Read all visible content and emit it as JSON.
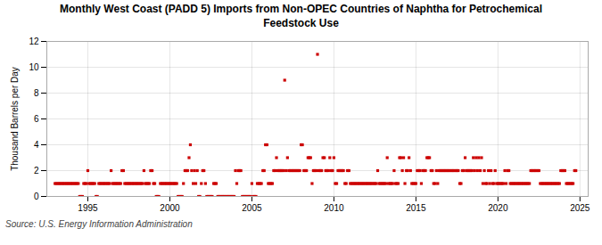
{
  "chart_data": {
    "type": "scatter",
    "title": "Monthly West Coast (PADD 5) Imports from Non-OPEC Countries of Naphtha for Petrochemical\nFeedstock Use",
    "ylabel": "Thousand Barrels per Day",
    "annotations": [
      "Source: U.S. Energy Information Administration"
    ],
    "color": "#cc0000",
    "marker": "square",
    "grid": true,
    "xlim": [
      1992.5,
      2025.5
    ],
    "xticks": [
      1995,
      2000,
      2005,
      2010,
      2015,
      2020,
      2025
    ],
    "ylim": [
      0,
      12
    ],
    "yticks": [
      0,
      2,
      4,
      6,
      8,
      10,
      12
    ],
    "x": [
      1993.0,
      1993.08,
      1993.17,
      1993.25,
      1993.33,
      1993.42,
      1993.5,
      1993.58,
      1993.67,
      1993.75,
      1993.83,
      1993.92,
      1994.0,
      1994.08,
      1994.17,
      1994.25,
      1994.33,
      1994.42,
      1994.5,
      1994.58,
      1994.67,
      1994.75,
      1994.83,
      1994.92,
      1995.0,
      1995.08,
      1995.17,
      1995.25,
      1995.33,
      1995.42,
      1995.5,
      1995.58,
      1995.67,
      1995.75,
      1995.83,
      1995.92,
      1996.0,
      1996.08,
      1996.17,
      1996.25,
      1996.33,
      1996.42,
      1996.5,
      1996.58,
      1996.67,
      1996.75,
      1996.83,
      1996.92,
      1997.0,
      1997.08,
      1997.17,
      1997.25,
      1997.33,
      1997.42,
      1997.5,
      1997.58,
      1997.67,
      1997.75,
      1997.83,
      1997.92,
      1998.0,
      1998.08,
      1998.17,
      1998.25,
      1998.33,
      1998.42,
      1998.5,
      1998.58,
      1998.67,
      1998.75,
      1998.83,
      1998.92,
      1999.0,
      1999.08,
      1999.17,
      1999.25,
      1999.33,
      1999.42,
      1999.5,
      1999.58,
      1999.67,
      1999.75,
      1999.83,
      1999.92,
      2000.0,
      2000.08,
      2000.17,
      2000.25,
      2000.33,
      2000.42,
      2000.5,
      2000.58,
      2000.67,
      2000.75,
      2000.83,
      2000.92,
      2001.0,
      2001.08,
      2001.17,
      2001.25,
      2001.33,
      2001.42,
      2001.5,
      2001.58,
      2001.67,
      2001.75,
      2001.83,
      2001.92,
      2002.0,
      2002.08,
      2002.17,
      2002.25,
      2002.33,
      2002.42,
      2002.5,
      2002.58,
      2002.67,
      2002.75,
      2002.83,
      2002.92,
      2003.0,
      2003.08,
      2003.17,
      2003.25,
      2003.33,
      2003.42,
      2003.5,
      2003.58,
      2003.67,
      2003.75,
      2003.83,
      2003.92,
      2004.0,
      2004.08,
      2004.17,
      2004.25,
      2004.33,
      2004.42,
      2004.5,
      2004.58,
      2004.67,
      2004.75,
      2004.83,
      2004.92,
      2005.0,
      2005.08,
      2005.17,
      2005.25,
      2005.33,
      2005.42,
      2005.5,
      2005.58,
      2005.67,
      2005.75,
      2005.83,
      2005.92,
      2006.0,
      2006.08,
      2006.17,
      2006.25,
      2006.33,
      2006.42,
      2006.5,
      2006.58,
      2006.67,
      2006.75,
      2006.83,
      2006.92,
      2007.0,
      2007.08,
      2007.17,
      2007.25,
      2007.33,
      2007.42,
      2007.5,
      2007.58,
      2007.67,
      2007.75,
      2007.83,
      2007.92,
      2008.0,
      2008.08,
      2008.17,
      2008.25,
      2008.33,
      2008.42,
      2008.5,
      2008.58,
      2008.67,
      2008.75,
      2008.83,
      2008.92,
      2009.0,
      2009.08,
      2009.17,
      2009.25,
      2009.33,
      2009.42,
      2009.5,
      2009.58,
      2009.67,
      2009.75,
      2009.83,
      2009.92,
      2010.0,
      2010.08,
      2010.17,
      2010.25,
      2010.33,
      2010.42,
      2010.5,
      2010.58,
      2010.67,
      2010.75,
      2010.83,
      2010.92,
      2011.0,
      2011.08,
      2011.17,
      2011.25,
      2011.33,
      2011.42,
      2011.5,
      2011.58,
      2011.67,
      2011.75,
      2011.83,
      2011.92,
      2012.0,
      2012.08,
      2012.17,
      2012.25,
      2012.33,
      2012.42,
      2012.5,
      2012.58,
      2012.67,
      2012.75,
      2012.83,
      2012.92,
      2013.0,
      2013.08,
      2013.17,
      2013.25,
      2013.33,
      2013.42,
      2013.5,
      2013.58,
      2013.67,
      2013.75,
      2013.83,
      2013.92,
      2014.0,
      2014.08,
      2014.17,
      2014.25,
      2014.33,
      2014.42,
      2014.5,
      2014.58,
      2014.67,
      2014.75,
      2014.83,
      2014.92,
      2015.0,
      2015.08,
      2015.17,
      2015.25,
      2015.33,
      2015.42,
      2015.5,
      2015.58,
      2015.67,
      2015.75,
      2015.83,
      2015.92,
      2016.0,
      2016.08,
      2016.17,
      2016.25,
      2016.33,
      2016.42,
      2016.5,
      2016.58,
      2016.67,
      2016.75,
      2016.83,
      2016.92,
      2017.0,
      2017.08,
      2017.17,
      2017.25,
      2017.33,
      2017.42,
      2017.5,
      2017.58,
      2017.67,
      2017.75,
      2017.83,
      2017.92,
      2018.0,
      2018.08,
      2018.17,
      2018.25,
      2018.33,
      2018.42,
      2018.5,
      2018.58,
      2018.67,
      2018.75,
      2018.83,
      2018.92,
      2019.0,
      2019.08,
      2019.17,
      2019.25,
      2019.33,
      2019.42,
      2019.5,
      2019.58,
      2019.67,
      2019.75,
      2019.83,
      2019.92,
      2020.0,
      2020.08,
      2020.17,
      2020.25,
      2020.33,
      2020.42,
      2020.5,
      2020.58,
      2020.67,
      2020.75,
      2020.83,
      2020.92,
      2021.0,
      2021.08,
      2021.17,
      2021.25,
      2021.33,
      2021.42,
      2021.5,
      2021.58,
      2021.67,
      2021.75,
      2021.83,
      2021.92,
      2022.0,
      2022.08,
      2022.17,
      2022.25,
      2022.33,
      2022.42,
      2022.5,
      2022.58,
      2022.67,
      2022.75,
      2022.83,
      2022.92,
      2023.0,
      2023.08,
      2023.17,
      2023.25,
      2023.33,
      2023.42,
      2023.5,
      2023.58,
      2023.67,
      2023.75,
      2023.83,
      2023.92,
      2024.0,
      2024.08,
      2024.17,
      2024.25,
      2024.33,
      2024.42,
      2024.5,
      2024.58,
      2024.67,
      2024.75
    ],
    "values": [
      1,
      1,
      1,
      1,
      1,
      1,
      1,
      1,
      1,
      1,
      1,
      1,
      1,
      1,
      1,
      1,
      1,
      1,
      0,
      0,
      0,
      1,
      1,
      1,
      2,
      1,
      1,
      1,
      1,
      1,
      0,
      0,
      1,
      1,
      1,
      1,
      1,
      1,
      1,
      1,
      1,
      2,
      1,
      1,
      1,
      1,
      1,
      1,
      1,
      2,
      2,
      1,
      1,
      1,
      1,
      1,
      1,
      1,
      1,
      1,
      1,
      1,
      1,
      1,
      1,
      2,
      1,
      1,
      1,
      1,
      2,
      2,
      1,
      1,
      0,
      0,
      0,
      1,
      1,
      1,
      1,
      1,
      1,
      1,
      1,
      1,
      1,
      1,
      1,
      1,
      0,
      0,
      0,
      0,
      1,
      2,
      2,
      2,
      3,
      4,
      2,
      1,
      2,
      1,
      2,
      0,
      0,
      1,
      2,
      2,
      1,
      0,
      0,
      0,
      0,
      0,
      1,
      1,
      1,
      0,
      0,
      0,
      0,
      0,
      0,
      0,
      0,
      0,
      0,
      0,
      0,
      0,
      2,
      1,
      2,
      2,
      2,
      0,
      0,
      0,
      0,
      0,
      0,
      0,
      1,
      0,
      0,
      0,
      1,
      1,
      1,
      1,
      2,
      2,
      4,
      4,
      1,
      1,
      1,
      1,
      2,
      2,
      3,
      2,
      2,
      2,
      2,
      2,
      9,
      2,
      3,
      2,
      2,
      2,
      2,
      2,
      2,
      2,
      2,
      2,
      4,
      4,
      2,
      2,
      2,
      3,
      3,
      3,
      1,
      2,
      2,
      2,
      11,
      2,
      2,
      2,
      3,
      3,
      2,
      2,
      2,
      3,
      2,
      2,
      3,
      1,
      1,
      2,
      2,
      2,
      2,
      2,
      1,
      1,
      2,
      2,
      1,
      1,
      1,
      1,
      1,
      1,
      1,
      1,
      1,
      1,
      1,
      1,
      1,
      1,
      1,
      1,
      1,
      1,
      1,
      1,
      2,
      1,
      1,
      1,
      1,
      1,
      1,
      3,
      1,
      1,
      1,
      1,
      2,
      1,
      1,
      1,
      3,
      3,
      2,
      3,
      1,
      2,
      2,
      3,
      2,
      1,
      1,
      1,
      1,
      2,
      2,
      2,
      1,
      2,
      2,
      2,
      3,
      3,
      3,
      2,
      2,
      1,
      1,
      2,
      1,
      2,
      2,
      2,
      2,
      2,
      2,
      2,
      2,
      2,
      2,
      2,
      2,
      2,
      2,
      2,
      1,
      1,
      2,
      2,
      3,
      2,
      2,
      2,
      2,
      2,
      3,
      2,
      3,
      2,
      3,
      2,
      3,
      1,
      2,
      1,
      1,
      2,
      1,
      2,
      1,
      1,
      2,
      1,
      1,
      1,
      1,
      1,
      1,
      2,
      1,
      2,
      2,
      1,
      1,
      1,
      1,
      1,
      1,
      1,
      1,
      1,
      1,
      1,
      1,
      1,
      1,
      1,
      2,
      2,
      2,
      2,
      2,
      2,
      2,
      1,
      1,
      1,
      1,
      1,
      1,
      1,
      1,
      1,
      1,
      1,
      1,
      1,
      1,
      1,
      2,
      2,
      2,
      2,
      1,
      1,
      1,
      1,
      1,
      1,
      2,
      2
    ]
  }
}
